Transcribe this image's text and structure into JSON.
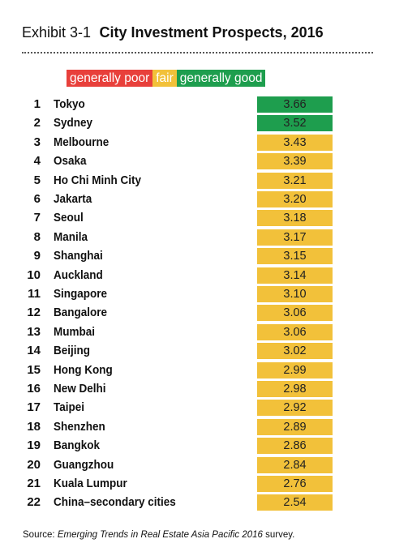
{
  "exhibit": "Exhibit 3-1",
  "title": "City Investment Prospects, 2016",
  "legend": {
    "poor": "generally poor",
    "fair": "fair",
    "good": "generally good"
  },
  "colors": {
    "poor": "#e8403b",
    "fair": "#f2c13a",
    "good": "#1e9e4e"
  },
  "source": {
    "prefix": "Source: ",
    "name": "Emerging Trends in Real Estate Asia Pacific 2016",
    "suffix": " survey."
  },
  "chart_data": {
    "type": "table",
    "title": "City Investment Prospects, 2016",
    "columns": [
      "rank",
      "city",
      "score",
      "rating"
    ],
    "rows": [
      {
        "rank": "1",
        "city": "Tokyo",
        "score": "3.66",
        "rating": "good"
      },
      {
        "rank": "2",
        "city": "Sydney",
        "score": "3.52",
        "rating": "good"
      },
      {
        "rank": "3",
        "city": "Melbourne",
        "score": "3.43",
        "rating": "fair"
      },
      {
        "rank": "4",
        "city": "Osaka",
        "score": "3.39",
        "rating": "fair"
      },
      {
        "rank": "5",
        "city": "Ho Chi Minh City",
        "score": "3.21",
        "rating": "fair"
      },
      {
        "rank": "6",
        "city": "Jakarta",
        "score": "3.20",
        "rating": "fair"
      },
      {
        "rank": "7",
        "city": "Seoul",
        "score": "3.18",
        "rating": "fair"
      },
      {
        "rank": "8",
        "city": "Manila",
        "score": "3.17",
        "rating": "fair"
      },
      {
        "rank": "9",
        "city": "Shanghai",
        "score": "3.15",
        "rating": "fair"
      },
      {
        "rank": "10",
        "city": "Auckland",
        "score": "3.14",
        "rating": "fair"
      },
      {
        "rank": "11",
        "city": "Singapore",
        "score": "3.10",
        "rating": "fair"
      },
      {
        "rank": "12",
        "city": "Bangalore",
        "score": "3.06",
        "rating": "fair"
      },
      {
        "rank": "13",
        "city": "Mumbai",
        "score": "3.06",
        "rating": "fair"
      },
      {
        "rank": "14",
        "city": "Beijing",
        "score": "3.02",
        "rating": "fair"
      },
      {
        "rank": "15",
        "city": "Hong Kong",
        "score": "2.99",
        "rating": "fair"
      },
      {
        "rank": "16",
        "city": "New Delhi",
        "score": "2.98",
        "rating": "fair"
      },
      {
        "rank": "17",
        "city": "Taipei",
        "score": "2.92",
        "rating": "fair"
      },
      {
        "rank": "18",
        "city": "Shenzhen",
        "score": "2.89",
        "rating": "fair"
      },
      {
        "rank": "19",
        "city": "Bangkok",
        "score": "2.86",
        "rating": "fair"
      },
      {
        "rank": "20",
        "city": "Guangzhou",
        "score": "2.84",
        "rating": "fair"
      },
      {
        "rank": "21",
        "city": "Kuala Lumpur",
        "score": "2.76",
        "rating": "fair"
      },
      {
        "rank": "22",
        "city": "China–secondary cities",
        "score": "2.54",
        "rating": "fair"
      }
    ]
  }
}
